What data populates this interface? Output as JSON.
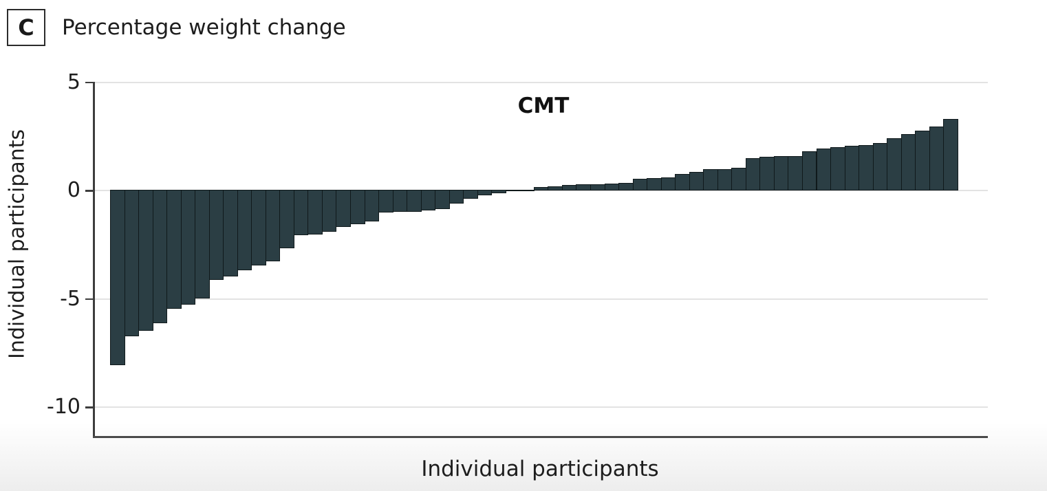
{
  "panel": {
    "label": "C",
    "title": "Percentage weight change"
  },
  "chart_data": {
    "type": "bar",
    "subtype": "waterfall",
    "title": "Percentage weight change",
    "group_label": "CMT",
    "xlabel": "Individual participants",
    "ylabel": "Individual participants",
    "ylim": [
      -11.5,
      5
    ],
    "yticks": [
      5,
      0,
      -5,
      -10
    ],
    "grid": "horizontal",
    "legend": "none",
    "bar_color": "#2b3e44",
    "bar_border_color": "#10191b",
    "gridline_color": "#e3e3e3",
    "n_bars": 60,
    "values": [
      -8.1,
      -6.75,
      -6.5,
      -6.15,
      -5.5,
      -5.3,
      -5.0,
      -4.15,
      -4.0,
      -3.7,
      -3.5,
      -3.3,
      -2.7,
      -2.1,
      -2.05,
      -1.95,
      -1.7,
      -1.6,
      -1.45,
      -1.05,
      -1.0,
      -1.0,
      -0.95,
      -0.9,
      -0.65,
      -0.4,
      -0.25,
      -0.15,
      -0.05,
      -0.02,
      0.15,
      0.2,
      0.25,
      0.28,
      0.3,
      0.33,
      0.35,
      0.55,
      0.58,
      0.6,
      0.75,
      0.85,
      1.0,
      1.0,
      1.05,
      1.5,
      1.55,
      1.6,
      1.6,
      1.8,
      1.95,
      2.0,
      2.05,
      2.1,
      2.2,
      2.4,
      2.6,
      2.75,
      2.95,
      3.3
    ]
  }
}
